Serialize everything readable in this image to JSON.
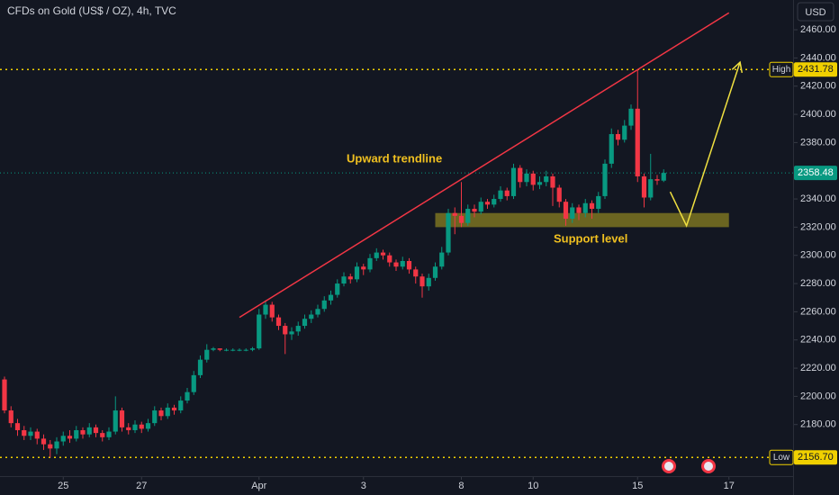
{
  "chart_data": {
    "type": "candlestick",
    "title": "CFDs on Gold (US$ / OZ), 4h, TVC",
    "currency": "USD",
    "up_color": "#089981",
    "down_color": "#f23645",
    "open": [
      2212,
      2190,
      2181,
      2176,
      2172,
      2175,
      2170,
      2166,
      2163,
      2168,
      2172,
      2170,
      2176,
      2173,
      2178,
      2174,
      2171,
      2175,
      2190,
      2178,
      2176,
      2180,
      2177,
      2181,
      2190,
      2186,
      2192,
      2190,
      2197,
      2203,
      2215,
      2226,
      2233,
      2234,
      2233,
      2233,
      2233,
      2233,
      2233,
      2234,
      2258,
      2265,
      2256,
      2250,
      2244,
      2246,
      2250,
      2255,
      2258,
      2262,
      2268,
      2272,
      2280,
      2285,
      2283,
      2292,
      2290,
      2298,
      2302,
      2300,
      2295,
      2292,
      2296,
      2290,
      2285,
      2278,
      2284,
      2292,
      2302,
      2330,
      2328,
      2323,
      2333,
      2331,
      2338,
      2336,
      2340,
      2346,
      2342,
      2362,
      2352,
      2358,
      2350,
      2352,
      2356,
      2348,
      2338,
      2326,
      2334,
      2330,
      2337,
      2333,
      2342,
      2365,
      2386,
      2382,
      2392,
      2404,
      2356,
      2341,
      2354,
      2353
    ],
    "high": [
      2214,
      2193,
      2184,
      2179,
      2178,
      2177,
      2173,
      2169,
      2171,
      2175,
      2176,
      2179,
      2178,
      2181,
      2180,
      2176,
      2178,
      2200,
      2192,
      2181,
      2183,
      2182,
      2184,
      2193,
      2192,
      2195,
      2194,
      2200,
      2206,
      2218,
      2229,
      2237,
      2235,
      2234,
      2234,
      2234,
      2234,
      2234,
      2235,
      2262,
      2268,
      2267,
      2258,
      2252,
      2249,
      2253,
      2258,
      2261,
      2265,
      2271,
      2275,
      2283,
      2288,
      2287,
      2295,
      2294,
      2301,
      2305,
      2304,
      2302,
      2297,
      2299,
      2298,
      2292,
      2287,
      2287,
      2295,
      2306,
      2333,
      2334,
      2352,
      2336,
      2336,
      2341,
      2340,
      2343,
      2349,
      2348,
      2365,
      2364,
      2361,
      2360,
      2356,
      2360,
      2358,
      2350,
      2340,
      2337,
      2336,
      2340,
      2339,
      2345,
      2368,
      2390,
      2389,
      2396,
      2407,
      2431.78,
      2358,
      2372,
      2357,
      2361
    ],
    "low": [
      2188,
      2178,
      2172,
      2169,
      2169,
      2166,
      2162,
      2156.7,
      2159,
      2165,
      2167,
      2168,
      2170,
      2171,
      2171,
      2168,
      2169,
      2173,
      2175,
      2173,
      2174,
      2174,
      2175,
      2179,
      2183,
      2184,
      2187,
      2188,
      2195,
      2201,
      2213,
      2224,
      2232,
      2232,
      2232,
      2232,
      2232,
      2232,
      2232,
      2233,
      2255,
      2253,
      2247,
      2230,
      2240,
      2243,
      2248,
      2252,
      2256,
      2260,
      2265,
      2270,
      2278,
      2280,
      2281,
      2286,
      2288,
      2296,
      2297,
      2292,
      2289,
      2290,
      2287,
      2280,
      2270,
      2275,
      2282,
      2290,
      2300,
      2315,
      2320,
      2321,
      2327,
      2329,
      2333,
      2334,
      2338,
      2339,
      2340,
      2348,
      2349,
      2346,
      2347,
      2349,
      2335,
      2334,
      2321,
      2323,
      2325,
      2327,
      2326,
      2330,
      2340,
      2362,
      2378,
      2380,
      2389,
      2352,
      2334,
      2339,
      2350,
      2352
    ],
    "close": [
      2190,
      2181,
      2176,
      2172,
      2175,
      2170,
      2166,
      2163,
      2168,
      2172,
      2170,
      2176,
      2173,
      2178,
      2174,
      2171,
      2175,
      2190,
      2178,
      2176,
      2180,
      2177,
      2181,
      2190,
      2186,
      2192,
      2190,
      2197,
      2203,
      2215,
      2226,
      2233,
      2234,
      2233,
      2233,
      2233,
      2233,
      2233,
      2234,
      2258,
      2265,
      2256,
      2250,
      2244,
      2246,
      2250,
      2255,
      2258,
      2262,
      2268,
      2272,
      2280,
      2285,
      2283,
      2292,
      2290,
      2298,
      2302,
      2300,
      2295,
      2292,
      2296,
      2290,
      2285,
      2278,
      2284,
      2292,
      2302,
      2330,
      2328,
      2323,
      2333,
      2331,
      2338,
      2336,
      2340,
      2346,
      2342,
      2362,
      2352,
      2358,
      2350,
      2352,
      2356,
      2348,
      2338,
      2326,
      2334,
      2330,
      2337,
      2333,
      2342,
      2365,
      2386,
      2382,
      2392,
      2404,
      2356,
      2341,
      2354,
      2353,
      2358.48
    ],
    "xlim": [
      -0.69,
      120.69
    ],
    "ylim": [
      2142.8,
      2481.1
    ],
    "xticks": [
      {
        "value": 9,
        "label": "25"
      },
      {
        "value": 21,
        "label": "27"
      },
      {
        "value": 39,
        "label": "Apr"
      },
      {
        "value": 55,
        "label": "3"
      },
      {
        "value": 70,
        "label": "8"
      },
      {
        "value": 81,
        "label": "10"
      },
      {
        "value": 97,
        "label": "15"
      },
      {
        "value": 111,
        "label": "17"
      }
    ],
    "yticks": [
      {
        "value": 2180,
        "label": "2180.00"
      },
      {
        "value": 2200,
        "label": "2200.00"
      },
      {
        "value": 2220,
        "label": "2220.00"
      },
      {
        "value": 2240,
        "label": "2240.00"
      },
      {
        "value": 2260,
        "label": "2260.00"
      },
      {
        "value": 2280,
        "label": "2280.00"
      },
      {
        "value": 2300,
        "label": "2300.00"
      },
      {
        "value": 2320,
        "label": "2320.00"
      },
      {
        "value": 2340,
        "label": "2340.00"
      },
      {
        "value": 2360,
        "label": "2360.00"
      },
      {
        "value": 2380,
        "label": "2380.00"
      },
      {
        "value": 2400,
        "label": "2400.00"
      },
      {
        "value": 2420,
        "label": "2420.00"
      },
      {
        "value": 2440,
        "label": "2440.00"
      },
      {
        "value": 2460,
        "label": "2460.00"
      }
    ],
    "high_marker": {
      "label": "High",
      "price": 2431.78
    },
    "low_marker": {
      "label": "Low",
      "price": {
        "value": 2156.7,
        "label": "2156.70"
      }
    },
    "last_price": 2358.48,
    "trendline": {
      "x": [
        36,
        111
      ],
      "y": [
        2256,
        2472
      ],
      "color": "#f23645"
    },
    "support_zone": {
      "x": [
        66,
        111
      ],
      "y": [
        2320,
        2330
      ],
      "color": "#b5a520"
    },
    "projection": {
      "x": [
        102,
        104.5,
        112.7
      ],
      "y": [
        2345,
        2321,
        2437
      ],
      "color": "#f0e040"
    },
    "annotations": [
      "Upward trendline",
      "Support level"
    ]
  }
}
